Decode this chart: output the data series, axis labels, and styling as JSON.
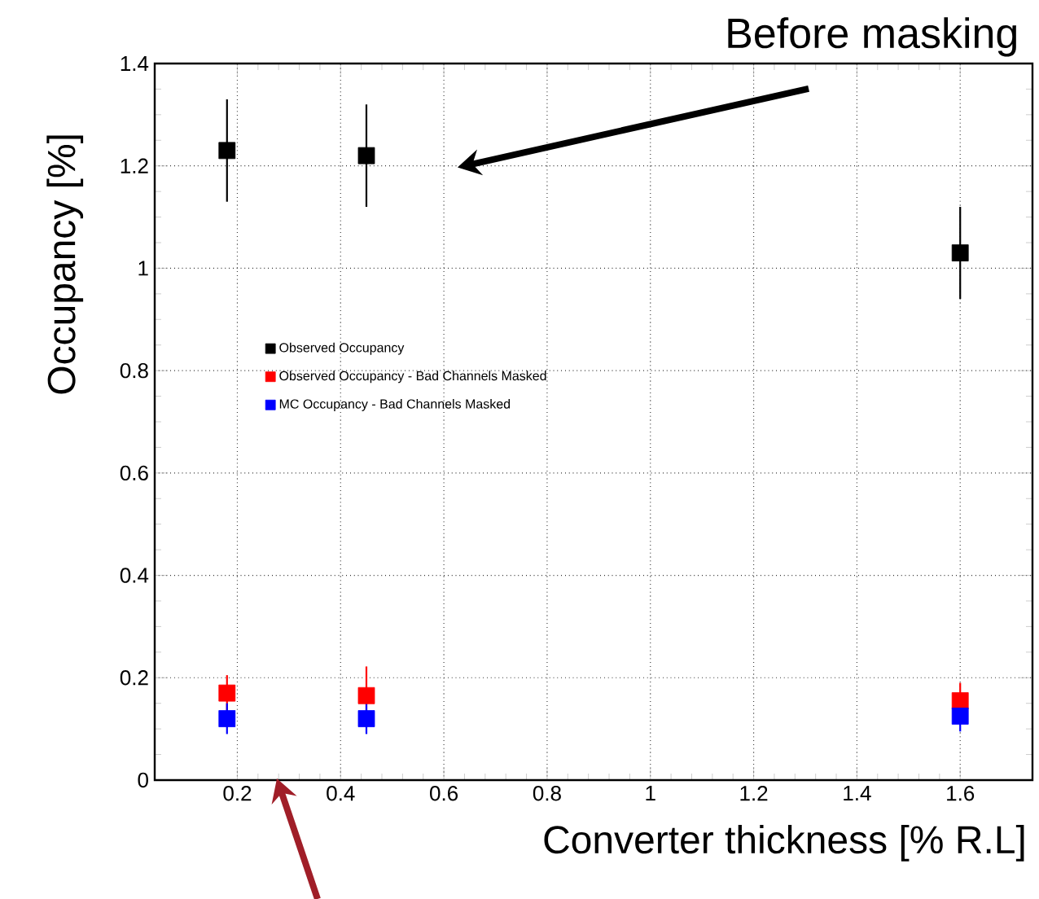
{
  "chart_data": {
    "type": "scatter",
    "xlabel": "Converter thickness [% R.L]",
    "ylabel": "Occupancy [%]",
    "annotations": [
      "Before masking"
    ],
    "xlim": [
      0.04,
      1.74
    ],
    "ylim": [
      0,
      1.4
    ],
    "xticks": [
      0.2,
      0.4,
      0.6,
      0.8,
      1,
      1.2,
      1.4,
      1.6
    ],
    "yticks": [
      0,
      0.2,
      0.4,
      0.6,
      0.8,
      1,
      1.2,
      1.4
    ],
    "grid": true,
    "legend": "left",
    "marker": "square",
    "x": [
      0.18,
      0.45,
      1.6
    ],
    "series": [
      {
        "name": "Observed Occupancy",
        "color": "#000000",
        "values": [
          1.23,
          1.22,
          1.03
        ],
        "errors": [
          0.1,
          0.1,
          [
            0.94,
            1.12
          ]
        ]
      },
      {
        "name": "Observed Occupancy - Bad Channels Masked",
        "color": "#ff0000",
        "values": [
          0.17,
          0.165,
          0.155
        ],
        "errors": [
          [
            0.13,
            0.205
          ],
          [
            0.13,
            0.222
          ],
          [
            0.155,
            0.19
          ]
        ]
      },
      {
        "name": "MC Occupancy - Bad Channels Masked",
        "color": "#0000ff",
        "values": [
          0.12,
          0.12,
          0.125
        ],
        "errors": [
          0.03,
          0.03,
          0.03
        ]
      }
    ]
  }
}
